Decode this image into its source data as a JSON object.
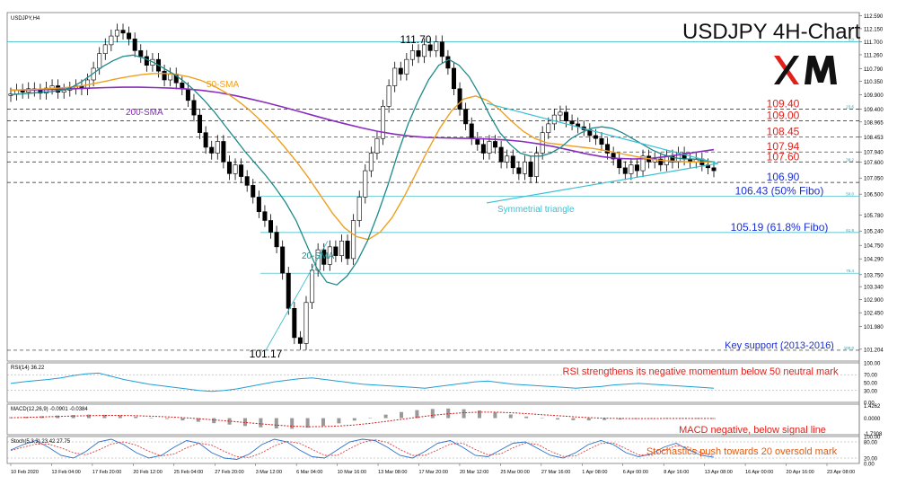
{
  "header": {
    "symbol": "USDJPY,H4",
    "title": "USDJPY 4H-Chart",
    "brand": "XM"
  },
  "colors": {
    "price_up": "#000000",
    "price_down": "#000000",
    "sma20": "#1f8a8a",
    "sma50": "#f0a020",
    "sma200": "#8a2cbf",
    "triangle": "#39c0d4",
    "resistance_label": "#e0211a",
    "support_label": "#1a2fd6",
    "fib_line": "#2bb6c4",
    "key_level": "#000000",
    "macd_signal": "#d61a1a",
    "rsi_line": "#1f9fd4",
    "stoch_main": "#2a70c8",
    "stoch_signal": "#e04040"
  },
  "chart_data": [
    {
      "type": "line",
      "panel": "price",
      "title": "USDJPY 4H-Chart",
      "x_ticks": [
        "10 Feb 2020",
        "13 Feb 04:00",
        "17 Feb 20:00",
        "20 Feb 12:00",
        "25 Feb 04:00",
        "27 Feb 20:00",
        "3 Mar 12:00",
        "6 Mar 04:00",
        "10 Mar 16:00",
        "13 Mar 08:00",
        "17 Mar 20:00",
        "20 Mar 12:00",
        "25 Mar 00:00",
        "27 Mar 16:00",
        "1 Apr 08:00",
        "6 Apr 00:00",
        "8 Apr 16:00",
        "13 Apr 08:00",
        "16 Apr 00:00",
        "20 Apr 16:00",
        "23 Apr 08:00"
      ],
      "y_ticks": [
        "112.590",
        "112.150",
        "111.700",
        "111.260",
        "110.790",
        "110.350",
        "109.900",
        "109.400",
        "108.965",
        "108.453",
        "107.940",
        "107.600",
        "107.050",
        "106.500",
        "105.780",
        "105.240",
        "104.750",
        "104.290",
        "103.750",
        "103.340",
        "102.900",
        "102.450",
        "101.980",
        "101.204"
      ],
      "ylim": [
        100.8,
        112.7
      ],
      "candles_close": [
        109.92,
        110.05,
        109.98,
        110.1,
        110.05,
        109.95,
        110.12,
        110.2,
        109.98,
        110.05,
        110.12,
        110.2,
        110.1,
        110.4,
        110.8,
        111.3,
        111.6,
        111.9,
        112.1,
        112.0,
        111.8,
        111.4,
        111.2,
        110.9,
        111.1,
        110.7,
        110.4,
        110.6,
        110.3,
        110.1,
        109.7,
        109.2,
        108.6,
        108.1,
        107.9,
        108.3,
        107.6,
        107.2,
        107.5,
        107.1,
        106.8,
        106.4,
        105.9,
        105.6,
        105.2,
        104.7,
        103.8,
        102.6,
        101.6,
        101.4,
        102.8,
        103.9,
        104.6,
        104.1,
        104.7,
        104.4,
        104.9,
        104.3,
        105.6,
        106.4,
        107.3,
        107.9,
        108.4,
        109.5,
        110.2,
        110.8,
        110.6,
        111.1,
        111.4,
        111.2,
        111.6,
        111.4,
        111.7,
        111.2,
        110.8,
        110.1,
        109.4,
        108.9,
        108.4,
        108.2,
        107.9,
        108.3,
        108.1,
        107.6,
        107.8,
        107.4,
        107.2,
        107.6,
        107.1,
        107.9,
        108.6,
        108.9,
        109.2,
        109.3,
        109.0,
        108.9,
        108.8,
        108.7,
        108.5,
        108.4,
        108.2,
        107.9,
        107.7,
        107.4,
        107.2,
        107.5,
        107.3,
        107.8,
        107.6,
        107.7,
        107.5,
        107.8,
        107.6,
        107.9,
        107.7,
        107.6,
        107.7,
        107.5,
        107.4,
        107.3
      ],
      "sma20": [
        109.9,
        109.92,
        109.95,
        109.98,
        110.0,
        110.05,
        110.15,
        110.35,
        110.6,
        110.85,
        111.05,
        111.2,
        111.25,
        111.15,
        111.0,
        110.8,
        110.6,
        110.35,
        110.05,
        109.7,
        109.3,
        108.85,
        108.4,
        107.95,
        107.55,
        107.15,
        106.7,
        106.2,
        105.6,
        104.8,
        104.0,
        103.5,
        103.4,
        103.7,
        104.2,
        104.9,
        105.8,
        106.8,
        107.9,
        108.9,
        109.7,
        110.4,
        110.9,
        111.1,
        110.9,
        110.5,
        109.9,
        109.2,
        108.6,
        108.2,
        107.9,
        107.8,
        107.8,
        107.9,
        108.1,
        108.4,
        108.6,
        108.75,
        108.8,
        108.75,
        108.6,
        108.4,
        108.2,
        108.0,
        107.85,
        107.75,
        107.7,
        107.7,
        107.65,
        107.6
      ],
      "sma50": [
        110.05,
        110.06,
        110.08,
        110.1,
        110.12,
        110.15,
        110.2,
        110.28,
        110.36,
        110.45,
        110.52,
        110.58,
        110.62,
        110.62,
        110.58,
        110.5,
        110.38,
        110.2,
        109.98,
        109.7,
        109.38,
        109.0,
        108.58,
        108.1,
        107.6,
        107.05,
        106.45,
        105.85,
        105.35,
        105.05,
        104.95,
        105.2,
        105.7,
        106.4,
        107.2,
        108.0,
        108.75,
        109.35,
        109.75,
        109.85,
        109.7,
        109.4,
        109.0,
        108.65,
        108.4,
        108.25,
        108.2,
        108.15,
        108.1,
        108.05,
        107.98,
        107.9,
        107.82,
        107.74,
        107.68,
        107.64,
        107.62,
        107.6,
        107.6,
        107.6
      ],
      "sma200": [
        110.05,
        110.06,
        110.07,
        110.08,
        110.1,
        110.12,
        110.14,
        110.15,
        110.15,
        110.14,
        110.12,
        110.09,
        110.04,
        109.97,
        109.87,
        109.75,
        109.62,
        109.48,
        109.33,
        109.18,
        109.03,
        108.89,
        108.76,
        108.64,
        108.55,
        108.48,
        108.44,
        108.42,
        108.41,
        108.4,
        108.38,
        108.35,
        108.3,
        108.22,
        108.12,
        108.0,
        107.88,
        107.78,
        107.72,
        107.7,
        107.72,
        107.78,
        107.86,
        107.94,
        108.02
      ],
      "series": [
        {
          "name": "20-SMA",
          "label": "20-SMA"
        },
        {
          "name": "50-SMA",
          "label": "50-SMA"
        },
        {
          "name": "200-SMA",
          "label": "200-SMA"
        }
      ],
      "levels": [
        {
          "value": 111.7,
          "label": "111.70",
          "kind": "peak",
          "fib_tag": "0.0"
        },
        {
          "value": 109.4,
          "label": "109.40",
          "kind": "resistance",
          "fib_tag": "23.6"
        },
        {
          "value": 109.0,
          "label": "109.00",
          "kind": "resistance"
        },
        {
          "value": 108.45,
          "label": "108.45",
          "kind": "resistance"
        },
        {
          "value": 107.94,
          "label": "107.94",
          "kind": "resistance"
        },
        {
          "value": 107.6,
          "label": "107.60",
          "kind": "resistance",
          "fib_tag": "38.2"
        },
        {
          "value": 106.9,
          "label": "106.90",
          "kind": "support"
        },
        {
          "value": 106.43,
          "label": "106.43 (50% Fibo)",
          "kind": "fib",
          "fib_tag": "50.0"
        },
        {
          "value": 105.19,
          "label": "105.19 (61.8% Fibo)",
          "kind": "fib",
          "fib_tag": "61.8"
        },
        {
          "value": 103.8,
          "label": "",
          "kind": "fib",
          "fib_tag": "76.4"
        },
        {
          "value": 101.17,
          "label": "Key support (2013-2016)",
          "kind": "key",
          "fib_tag": "100.0"
        }
      ],
      "annotations": [
        {
          "text": "111.70",
          "kind": "peak"
        },
        {
          "text": "101.17",
          "kind": "trough"
        },
        {
          "text": "Symmetrial triangle",
          "kind": "pattern"
        },
        {
          "text": "50-SMA",
          "kind": "sma50-label"
        },
        {
          "text": "200-SMA",
          "kind": "sma200-label"
        },
        {
          "text": "20-SMA",
          "kind": "sma20-label"
        }
      ]
    },
    {
      "type": "line",
      "panel": "rsi",
      "title": "RSI(14) 36.22",
      "y_ticks": [
        "100.00",
        "70.00",
        "50.00",
        "30.00",
        "0.00"
      ],
      "ylim": [
        0,
        100
      ],
      "values": [
        48,
        52,
        55,
        58,
        62,
        68,
        72,
        74,
        66,
        58,
        52,
        46,
        42,
        38,
        34,
        30,
        28,
        30,
        34,
        40,
        46,
        52,
        56,
        60,
        62,
        58,
        54,
        50,
        46,
        44,
        42,
        40,
        38,
        36,
        40,
        44,
        48,
        52,
        54,
        50,
        46,
        44,
        42,
        40,
        38,
        36,
        38,
        40,
        44,
        46,
        48,
        46,
        44,
        42,
        40,
        38,
        36
      ],
      "annotation": "RSI strengthens its negative momentum below 50 neutral mark"
    },
    {
      "type": "bar",
      "panel": "macd",
      "title": "MACD(12,26,9) -0.0901 -0.0384",
      "y_ticks": [
        "1.4262",
        "0.0000",
        "-1.7308"
      ],
      "ylim": [
        -1.9,
        1.6
      ],
      "values": [
        0.1,
        0.15,
        0.22,
        0.3,
        0.36,
        0.4,
        0.38,
        0.3,
        0.18,
        0.04,
        -0.1,
        -0.26,
        -0.42,
        -0.58,
        -0.74,
        -0.9,
        -1.05,
        -1.18,
        -1.22,
        -1.1,
        -0.9,
        -0.6,
        -0.28,
        0.05,
        0.4,
        0.7,
        0.92,
        1.05,
        1.1,
        1.02,
        0.88,
        0.66,
        0.42,
        0.18,
        -0.02,
        -0.16,
        -0.24,
        -0.26,
        -0.22,
        -0.16,
        -0.1,
        -0.06,
        -0.04,
        -0.05,
        -0.08,
        -0.09
      ],
      "signal": [
        0.05,
        0.09,
        0.14,
        0.19,
        0.24,
        0.28,
        0.31,
        0.31,
        0.28,
        0.22,
        0.15,
        0.06,
        -0.06,
        -0.2,
        -0.35,
        -0.5,
        -0.65,
        -0.8,
        -0.92,
        -0.98,
        -0.97,
        -0.9,
        -0.78,
        -0.6,
        -0.38,
        -0.14,
        0.1,
        0.32,
        0.5,
        0.62,
        0.68,
        0.68,
        0.62,
        0.52,
        0.4,
        0.28,
        0.16,
        0.06,
        -0.01,
        -0.04,
        -0.05,
        -0.05,
        -0.04,
        -0.04,
        -0.04,
        -0.04
      ],
      "annotation": "MACD negative, below signal line"
    },
    {
      "type": "line",
      "panel": "stochastic",
      "title": "Stoch(5,3,3) 23.42 27.75",
      "y_ticks": [
        "100.00",
        "80.00",
        "20.00",
        "0.00"
      ],
      "ylim": [
        0,
        100
      ],
      "values": [
        50,
        70,
        85,
        60,
        30,
        20,
        45,
        80,
        90,
        70,
        40,
        20,
        30,
        60,
        85,
        75,
        40,
        20,
        15,
        35,
        70,
        90,
        80,
        50,
        25,
        20,
        50,
        80,
        90,
        85,
        60,
        30,
        20,
        45,
        75,
        85,
        60,
        30,
        25,
        50,
        75,
        80,
        55,
        30,
        20,
        40,
        70,
        85,
        70,
        40,
        25,
        35,
        60,
        75,
        50,
        30,
        23
      ],
      "signal": [
        48,
        60,
        72,
        72,
        58,
        40,
        32,
        50,
        72,
        80,
        68,
        45,
        28,
        35,
        58,
        75,
        68,
        45,
        25,
        22,
        40,
        65,
        82,
        75,
        52,
        30,
        30,
        55,
        78,
        88,
        78,
        52,
        30,
        30,
        50,
        72,
        75,
        52,
        32,
        35,
        58,
        76,
        70,
        45,
        26,
        28,
        52,
        74,
        76,
        55,
        32,
        30,
        48,
        66,
        60,
        40,
        28
      ],
      "annotation": "Stochastics push towards 20 oversold mark"
    }
  ]
}
